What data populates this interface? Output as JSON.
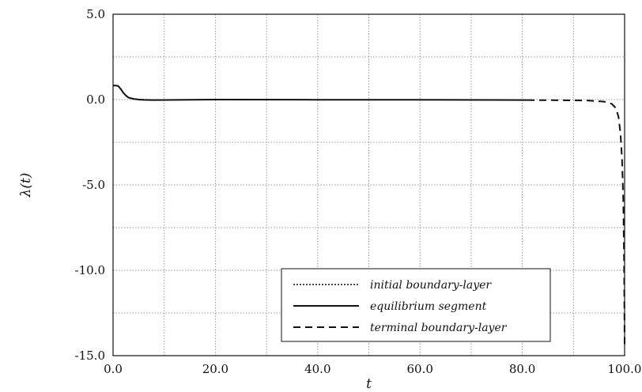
{
  "chart_data": {
    "type": "line",
    "xlabel": "t",
    "ylabel": "λ(t)",
    "xlim": [
      0,
      100
    ],
    "ylim": [
      -15,
      5
    ],
    "grid": true,
    "legend_position": "bottom-right",
    "x_ticks": [
      {
        "value": 0,
        "label": "0.0"
      },
      {
        "value": 20,
        "label": "20.0"
      },
      {
        "value": 40,
        "label": "40.0"
      },
      {
        "value": 60,
        "label": "60.0"
      },
      {
        "value": 80,
        "label": "80.0"
      },
      {
        "value": 100,
        "label": "100.0"
      }
    ],
    "y_ticks": [
      {
        "value": 5,
        "label": "5.0"
      },
      {
        "value": 0,
        "label": "0.0"
      },
      {
        "value": -5,
        "label": "-5.0"
      },
      {
        "value": -10,
        "label": "-10.0"
      },
      {
        "value": -15,
        "label": "-15.0"
      }
    ],
    "series": [
      {
        "name": "initial boundary-layer",
        "style": "dotted",
        "points": [
          [
            0,
            0.82
          ],
          [
            0.5,
            0.82
          ],
          [
            1.0,
            0.8
          ],
          [
            1.5,
            0.62
          ],
          [
            2.0,
            0.4
          ],
          [
            2.5,
            0.24
          ],
          [
            3.0,
            0.12
          ],
          [
            4.0,
            0.04
          ],
          [
            5.0,
            0.01
          ],
          [
            6.0,
            0.0
          ],
          [
            8.0,
            -0.02
          ],
          [
            10.0,
            -0.03
          ]
        ]
      },
      {
        "name": "equilibrium segment",
        "style": "solid",
        "points": [
          [
            0,
            0.82
          ],
          [
            0.5,
            0.82
          ],
          [
            1.0,
            0.8
          ],
          [
            1.5,
            0.62
          ],
          [
            2.0,
            0.4
          ],
          [
            2.5,
            0.24
          ],
          [
            3.0,
            0.12
          ],
          [
            4.0,
            0.04
          ],
          [
            5.0,
            0.0
          ],
          [
            6.0,
            -0.02
          ],
          [
            8.0,
            -0.03
          ],
          [
            20.0,
            0.0
          ],
          [
            40.0,
            -0.01
          ],
          [
            60.0,
            -0.01
          ],
          [
            81.0,
            -0.03
          ]
        ]
      },
      {
        "name": "terminal boundary-layer",
        "style": "dashed",
        "points": [
          [
            81.0,
            -0.03
          ],
          [
            88.0,
            -0.04
          ],
          [
            93.0,
            -0.06
          ],
          [
            96.0,
            -0.12
          ],
          [
            97.5,
            -0.25
          ],
          [
            98.3,
            -0.5
          ],
          [
            98.8,
            -1.0
          ],
          [
            99.2,
            -2.0
          ],
          [
            99.5,
            -3.5
          ],
          [
            99.75,
            -6.0
          ],
          [
            99.9,
            -9.5
          ],
          [
            100.0,
            -14.4
          ]
        ]
      }
    ]
  },
  "legend": {
    "items": [
      {
        "label": "initial boundary-layer",
        "style": "dotted"
      },
      {
        "label": "equilibrium segment",
        "style": "solid"
      },
      {
        "label": "terminal boundary-layer",
        "style": "dashed"
      }
    ]
  },
  "colors": {
    "line": "#111111",
    "grid": "#9a9a9a",
    "frame": "#111111",
    "background": "#ffffff"
  }
}
